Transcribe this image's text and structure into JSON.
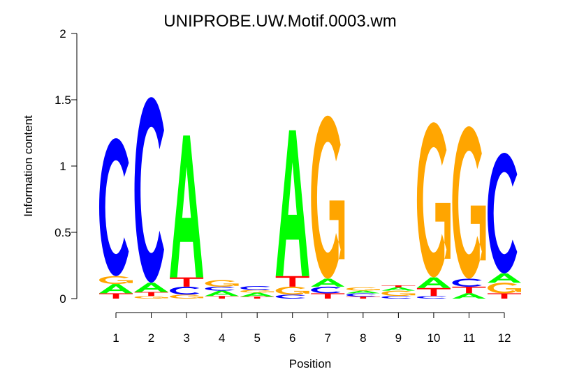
{
  "chart_data": {
    "type": "sequence-logo",
    "title": "UNIPROBE.UW.Motif.0003.wm",
    "xlabel": "Position",
    "ylabel": "Information content",
    "ylim": [
      0,
      2
    ],
    "yticks": [
      "0",
      "0.5",
      "1",
      "1.5",
      "2"
    ],
    "categories": [
      "1",
      "2",
      "3",
      "4",
      "5",
      "6",
      "7",
      "8",
      "9",
      "10",
      "11",
      "12"
    ],
    "colors": {
      "A": "#00ff00",
      "C": "#0000ff",
      "G": "#ffa500",
      "T": "#ff0000"
    },
    "positions": [
      {
        "position": 1,
        "stack": [
          [
            "T",
            0.04
          ],
          [
            "A",
            0.07
          ],
          [
            "G",
            0.06
          ],
          [
            "C",
            1.04
          ]
        ]
      },
      {
        "position": 2,
        "stack": [
          [
            "G",
            0.02
          ],
          [
            "T",
            0.03
          ],
          [
            "A",
            0.07
          ],
          [
            "C",
            1.4
          ]
        ]
      },
      {
        "position": 3,
        "stack": [
          [
            "G",
            0.03
          ],
          [
            "C",
            0.06
          ],
          [
            "T",
            0.07
          ],
          [
            "A",
            1.07
          ]
        ]
      },
      {
        "position": 4,
        "stack": [
          [
            "T",
            0.02
          ],
          [
            "A",
            0.04
          ],
          [
            "C",
            0.03
          ],
          [
            "G",
            0.05
          ]
        ]
      },
      {
        "position": 5,
        "stack": [
          [
            "T",
            0.015
          ],
          [
            "A",
            0.03
          ],
          [
            "G",
            0.02
          ],
          [
            "C",
            0.03
          ]
        ]
      },
      {
        "position": 6,
        "stack": [
          [
            "C",
            0.03
          ],
          [
            "G",
            0.06
          ],
          [
            "T",
            0.08
          ],
          [
            "A",
            1.1
          ]
        ]
      },
      {
        "position": 7,
        "stack": [
          [
            "T",
            0.04
          ],
          [
            "C",
            0.05
          ],
          [
            "A",
            0.06
          ],
          [
            "G",
            1.23
          ]
        ]
      },
      {
        "position": 8,
        "stack": [
          [
            "T",
            0.015
          ],
          [
            "C",
            0.025
          ],
          [
            "A",
            0.02
          ],
          [
            "G",
            0.025
          ]
        ]
      },
      {
        "position": 9,
        "stack": [
          [
            "C",
            0.02
          ],
          [
            "G",
            0.04
          ],
          [
            "A",
            0.025
          ],
          [
            "T",
            0.015
          ]
        ]
      },
      {
        "position": 10,
        "stack": [
          [
            "C",
            0.02
          ],
          [
            "T",
            0.06
          ],
          [
            "A",
            0.08
          ],
          [
            "G",
            1.17
          ]
        ]
      },
      {
        "position": 11,
        "stack": [
          [
            "A",
            0.04
          ],
          [
            "T",
            0.05
          ],
          [
            "C",
            0.06
          ],
          [
            "G",
            1.15
          ]
        ]
      },
      {
        "position": 12,
        "stack": [
          [
            "T",
            0.04
          ],
          [
            "G",
            0.08
          ],
          [
            "A",
            0.07
          ],
          [
            "C",
            0.91
          ]
        ]
      }
    ]
  }
}
